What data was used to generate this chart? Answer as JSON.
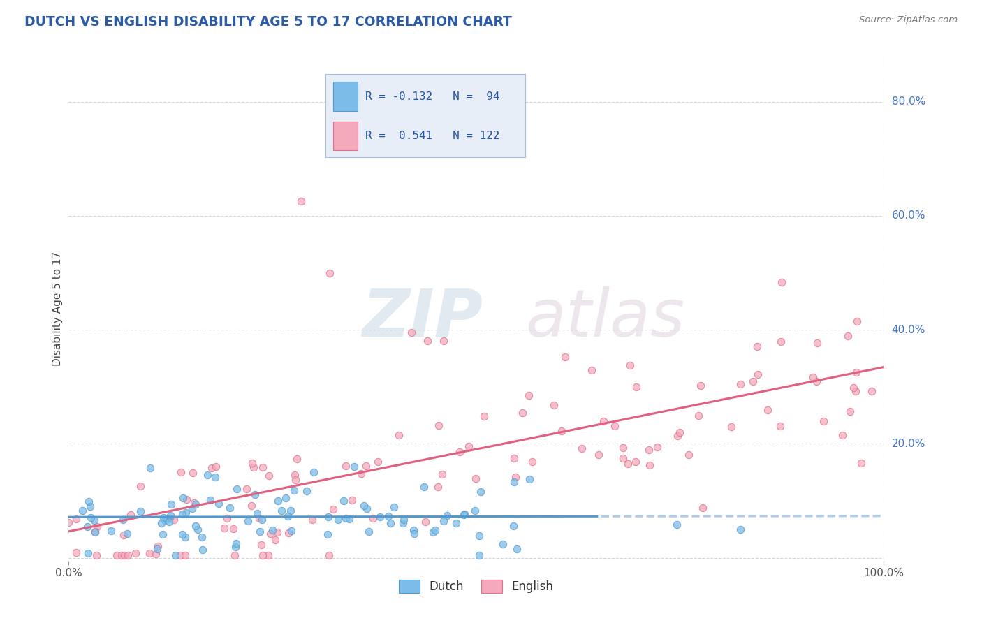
{
  "title": "DUTCH VS ENGLISH DISABILITY AGE 5 TO 17 CORRELATION CHART",
  "title_color": "#2B5BA8",
  "source_text": "Source: ZipAtlas.com",
  "ylabel": "Disability Age 5 to 17",
  "xlim": [
    0.0,
    1.0
  ],
  "ylim": [
    -0.005,
    0.88
  ],
  "yticks": [
    0.0,
    0.2,
    0.4,
    0.6,
    0.8
  ],
  "ytick_labels": [
    "",
    "20.0%",
    "40.0%",
    "60.0%",
    "80.0%"
  ],
  "dutch_color": "#7BBDE8",
  "dutch_edge_color": "#5599CC",
  "english_color": "#F4AABB",
  "english_edge_color": "#E07090",
  "dutch_line_color": "#5599CC",
  "dutch_line_dashed_color": "#AACCEE",
  "english_line_color": "#E06080",
  "dutch_R": -0.132,
  "dutch_N": 94,
  "english_R": 0.541,
  "english_N": 122,
  "watermark_zip": "ZIP",
  "watermark_atlas": "atlas",
  "background_color": "#FFFFFF",
  "grid_color": "#CCCCCC",
  "right_label_color": "#4472C4",
  "legend_box_color": "#E8EEF8",
  "legend_border_color": "#AABBDD"
}
